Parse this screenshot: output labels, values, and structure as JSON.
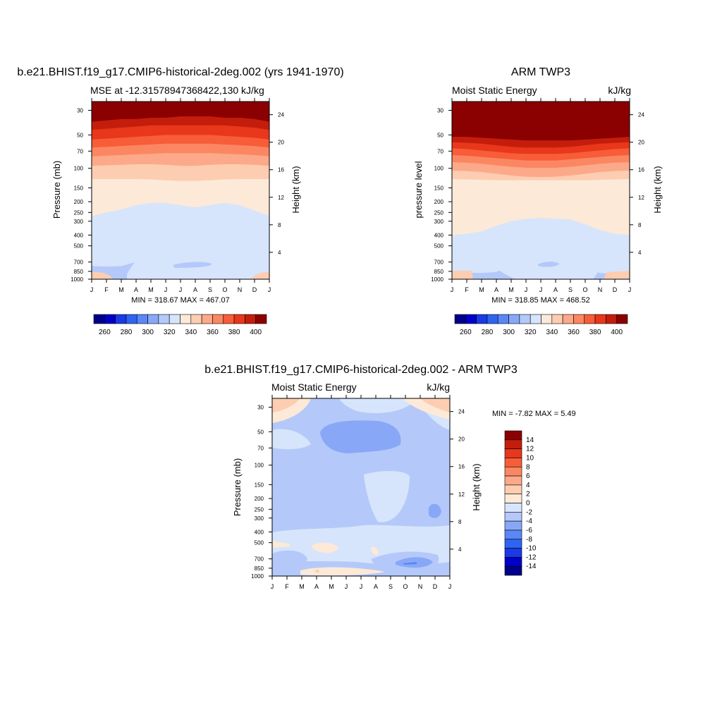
{
  "palette": [
    "#00008b",
    "#0000c8",
    "#1a3ae6",
    "#2f63f2",
    "#5b87f5",
    "#88a8f7",
    "#b4c9fa",
    "#d6e5fb",
    "#fde9d7",
    "#fdcdb2",
    "#fca98a",
    "#fb8762",
    "#f75d38",
    "#e8371b",
    "#c41d0c",
    "#8b0000"
  ],
  "top_left": {
    "title": "b.e21.BHIST.f19_g17.CMIP6-historical-2deg.002 (yrs 1941-1970)",
    "left_string": "MSE at -12.31578947368422,130 kJ/kg",
    "right_string": "",
    "ylabel": "Pressure (mb)",
    "ylabel_right": "Height (km)",
    "minmax": "MIN = 318.67 MAX = 467.07"
  },
  "top_right": {
    "title": "ARM TWP3",
    "left_string": "Moist Static Energy",
    "right_string": "kJ/kg",
    "ylabel": "pressure level",
    "ylabel_right": "Height (km)",
    "minmax": "MIN = 318.85 MAX = 468.52"
  },
  "bottom": {
    "title": "b.e21.BHIST.f19_g17.CMIP6-historical-2deg.002 - ARM TWP3",
    "left_string": "Moist Static Energy",
    "right_string": "kJ/kg",
    "ylabel": "Pressure (mb)",
    "ylabel_right": "Height (km)",
    "minmax": "MIN =  -7.82 MAX =   5.49"
  },
  "chart_data": [
    {
      "type": "heatmap",
      "title": "b.e21.BHIST.f19_g17.CMIP6-historical-2deg.002 (yrs 1941-1970)",
      "subtitle": "MSE at -12.31578947368422,130 kJ/kg",
      "xlabel": "",
      "ylabel": "Pressure (mb)",
      "ylabel_right": "Height (km)",
      "x_ticks": [
        "J",
        "F",
        "M",
        "A",
        "M",
        "J",
        "J",
        "A",
        "S",
        "O",
        "N",
        "D",
        "J"
      ],
      "y_ticks": [
        30,
        50,
        70,
        100,
        150,
        200,
        250,
        300,
        400,
        500,
        700,
        850,
        1000
      ],
      "y_right_ticks": [
        24,
        20,
        16,
        12,
        8,
        4
      ],
      "y_scale": "log",
      "ylim": [
        1000,
        25
      ],
      "contour_levels": [
        260,
        270,
        280,
        290,
        300,
        310,
        320,
        330,
        340,
        350,
        360,
        370,
        380,
        390,
        400
      ],
      "colorbar_labels": [
        260,
        280,
        300,
        320,
        340,
        360,
        380,
        400
      ],
      "min": 318.67,
      "max": 467.07,
      "level_boundaries": [
        {
          "level": 400,
          "pressure": [
            38,
            37,
            36,
            36,
            35,
            35,
            34,
            34,
            34,
            35,
            35,
            36,
            38
          ]
        },
        {
          "level": 390,
          "pressure": [
            45,
            44,
            43,
            42,
            41,
            41,
            41,
            41,
            41,
            41,
            42,
            43,
            45
          ]
        },
        {
          "level": 380,
          "pressure": [
            55,
            54,
            53,
            52,
            51,
            50,
            50,
            50,
            50,
            51,
            52,
            53,
            55
          ]
        },
        {
          "level": 370,
          "pressure": [
            65,
            64,
            63,
            62,
            61,
            60,
            60,
            60,
            60,
            61,
            62,
            63,
            65
          ]
        },
        {
          "level": 360,
          "pressure": [
            78,
            77,
            76,
            75,
            74,
            73,
            73,
            73,
            73,
            74,
            75,
            76,
            78
          ]
        },
        {
          "level": 350,
          "pressure": [
            95,
            94,
            93,
            92,
            92,
            93,
            95,
            95,
            93,
            92,
            92,
            93,
            95
          ]
        },
        {
          "level": 340,
          "pressure": [
            125,
            125,
            125,
            125,
            126,
            128,
            130,
            130,
            128,
            126,
            125,
            125,
            125
          ]
        },
        {
          "level": 330,
          "pressure": [
            270,
            250,
            235,
            215,
            205,
            205,
            215,
            225,
            215,
            205,
            215,
            240,
            270
          ]
        },
        {
          "level": 320,
          "pressure": [
            760,
            770,
            760,
            700,
            570,
            540,
            520,
            530,
            580,
            700,
            780,
            900,
            900
          ]
        }
      ]
    },
    {
      "type": "heatmap",
      "title": "ARM TWP3",
      "subtitle": "Moist Static Energy",
      "units": "kJ/kg",
      "xlabel": "",
      "ylabel": "pressure level",
      "ylabel_right": "Height (km)",
      "x_ticks": [
        "J",
        "F",
        "M",
        "A",
        "M",
        "J",
        "J",
        "A",
        "S",
        "O",
        "N",
        "D",
        "J"
      ],
      "y_ticks": [
        30,
        50,
        70,
        100,
        150,
        200,
        250,
        300,
        400,
        500,
        700,
        850,
        1000
      ],
      "y_right_ticks": [
        24,
        20,
        16,
        12,
        8,
        4
      ],
      "y_scale": "log",
      "ylim": [
        1000,
        25
      ],
      "contour_levels": [
        260,
        270,
        280,
        290,
        300,
        310,
        320,
        330,
        340,
        350,
        360,
        370,
        380,
        390,
        400
      ],
      "colorbar_labels": [
        260,
        280,
        300,
        320,
        340,
        360,
        380,
        400
      ],
      "min": 318.85,
      "max": 468.52,
      "level_boundaries": [
        {
          "level": 400,
          "pressure": [
            52,
            52,
            53,
            54,
            55,
            56,
            56,
            56,
            56,
            55,
            54,
            53,
            52
          ]
        },
        {
          "level": 390,
          "pressure": [
            58,
            59,
            60,
            62,
            64,
            65,
            65,
            65,
            64,
            62,
            60,
            59,
            58
          ]
        },
        {
          "level": 380,
          "pressure": [
            66,
            67,
            69,
            71,
            73,
            74,
            74,
            74,
            73,
            71,
            69,
            67,
            66
          ]
        },
        {
          "level": 370,
          "pressure": [
            76,
            77,
            79,
            81,
            83,
            85,
            85,
            85,
            83,
            81,
            79,
            77,
            76
          ]
        },
        {
          "level": 360,
          "pressure": [
            88,
            89,
            91,
            94,
            97,
            99,
            99,
            99,
            97,
            94,
            91,
            89,
            88
          ]
        },
        {
          "level": 350,
          "pressure": [
            105,
            106,
            108,
            112,
            116,
            119,
            120,
            119,
            116,
            112,
            108,
            106,
            105
          ]
        },
        {
          "level": 340,
          "pressure": [
            125,
            126,
            127,
            128,
            128,
            128,
            128,
            128,
            128,
            128,
            127,
            126,
            125
          ]
        },
        {
          "level": 330,
          "pressure": [
            400,
            390,
            370,
            330,
            300,
            285,
            280,
            285,
            290,
            320,
            360,
            390,
            400
          ]
        },
        {
          "level": 320,
          "pressure": [
            850,
            870,
            880,
            860,
            750,
            680,
            650,
            660,
            700,
            800,
            880,
            900,
            850
          ]
        }
      ]
    },
    {
      "type": "heatmap",
      "title": "b.e21.BHIST.f19_g17.CMIP6-historical-2deg.002 - ARM TWP3",
      "subtitle": "Moist Static Energy",
      "units": "kJ/kg",
      "xlabel": "",
      "ylabel": "Pressure (mb)",
      "ylabel_right": "Height (km)",
      "x_ticks": [
        "J",
        "F",
        "M",
        "A",
        "M",
        "J",
        "J",
        "A",
        "S",
        "O",
        "N",
        "D",
        "J"
      ],
      "y_ticks": [
        30,
        50,
        70,
        100,
        150,
        200,
        250,
        300,
        400,
        500,
        700,
        850,
        1000
      ],
      "y_right_ticks": [
        24,
        20,
        16,
        12,
        8,
        4
      ],
      "y_scale": "log",
      "ylim": [
        1000,
        25
      ],
      "contour_levels": [
        -14,
        -12,
        -10,
        -8,
        -6,
        -4,
        -2,
        0,
        2,
        4,
        6,
        8,
        10,
        12,
        14
      ],
      "colorbar_labels": [
        14,
        12,
        10,
        8,
        6,
        4,
        2,
        0,
        -2,
        -4,
        -6,
        -8,
        -10,
        -12,
        -14
      ],
      "min": -7.82,
      "max": 5.49,
      "features": [
        {
          "label": "positive near Jan upper levels",
          "value": 2.5,
          "x_month": [
            0,
            2
          ],
          "pressure": [
            25,
            60
          ]
        },
        {
          "label": "positive near Dec upper levels",
          "value": 2.5,
          "x_month": [
            10.5,
            12
          ],
          "pressure": [
            25,
            50
          ]
        },
        {
          "label": "negative core",
          "value": -5,
          "x_month": [
            3,
            8
          ],
          "pressure": [
            45,
            110
          ]
        },
        {
          "label": "near zero mid levels",
          "value": -1,
          "x_month": [
            6,
            9
          ],
          "pressure": [
            90,
            400
          ]
        },
        {
          "label": "negative low levels",
          "value": -6,
          "x_month": [
            8.5,
            11
          ],
          "pressure": [
            700,
            900
          ]
        }
      ]
    }
  ]
}
